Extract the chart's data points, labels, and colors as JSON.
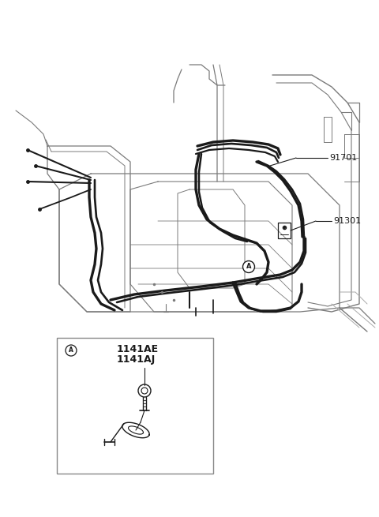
{
  "bg_color": "#ffffff",
  "line_color": "#1a1a1a",
  "struct_color": "#3a3a3a",
  "label_91701": "91701",
  "label_91301": "91301",
  "label_A_detail1": "1141AE",
  "label_A_detail2": "1141AJ",
  "figsize": [
    4.8,
    6.55
  ],
  "dpi": 100
}
